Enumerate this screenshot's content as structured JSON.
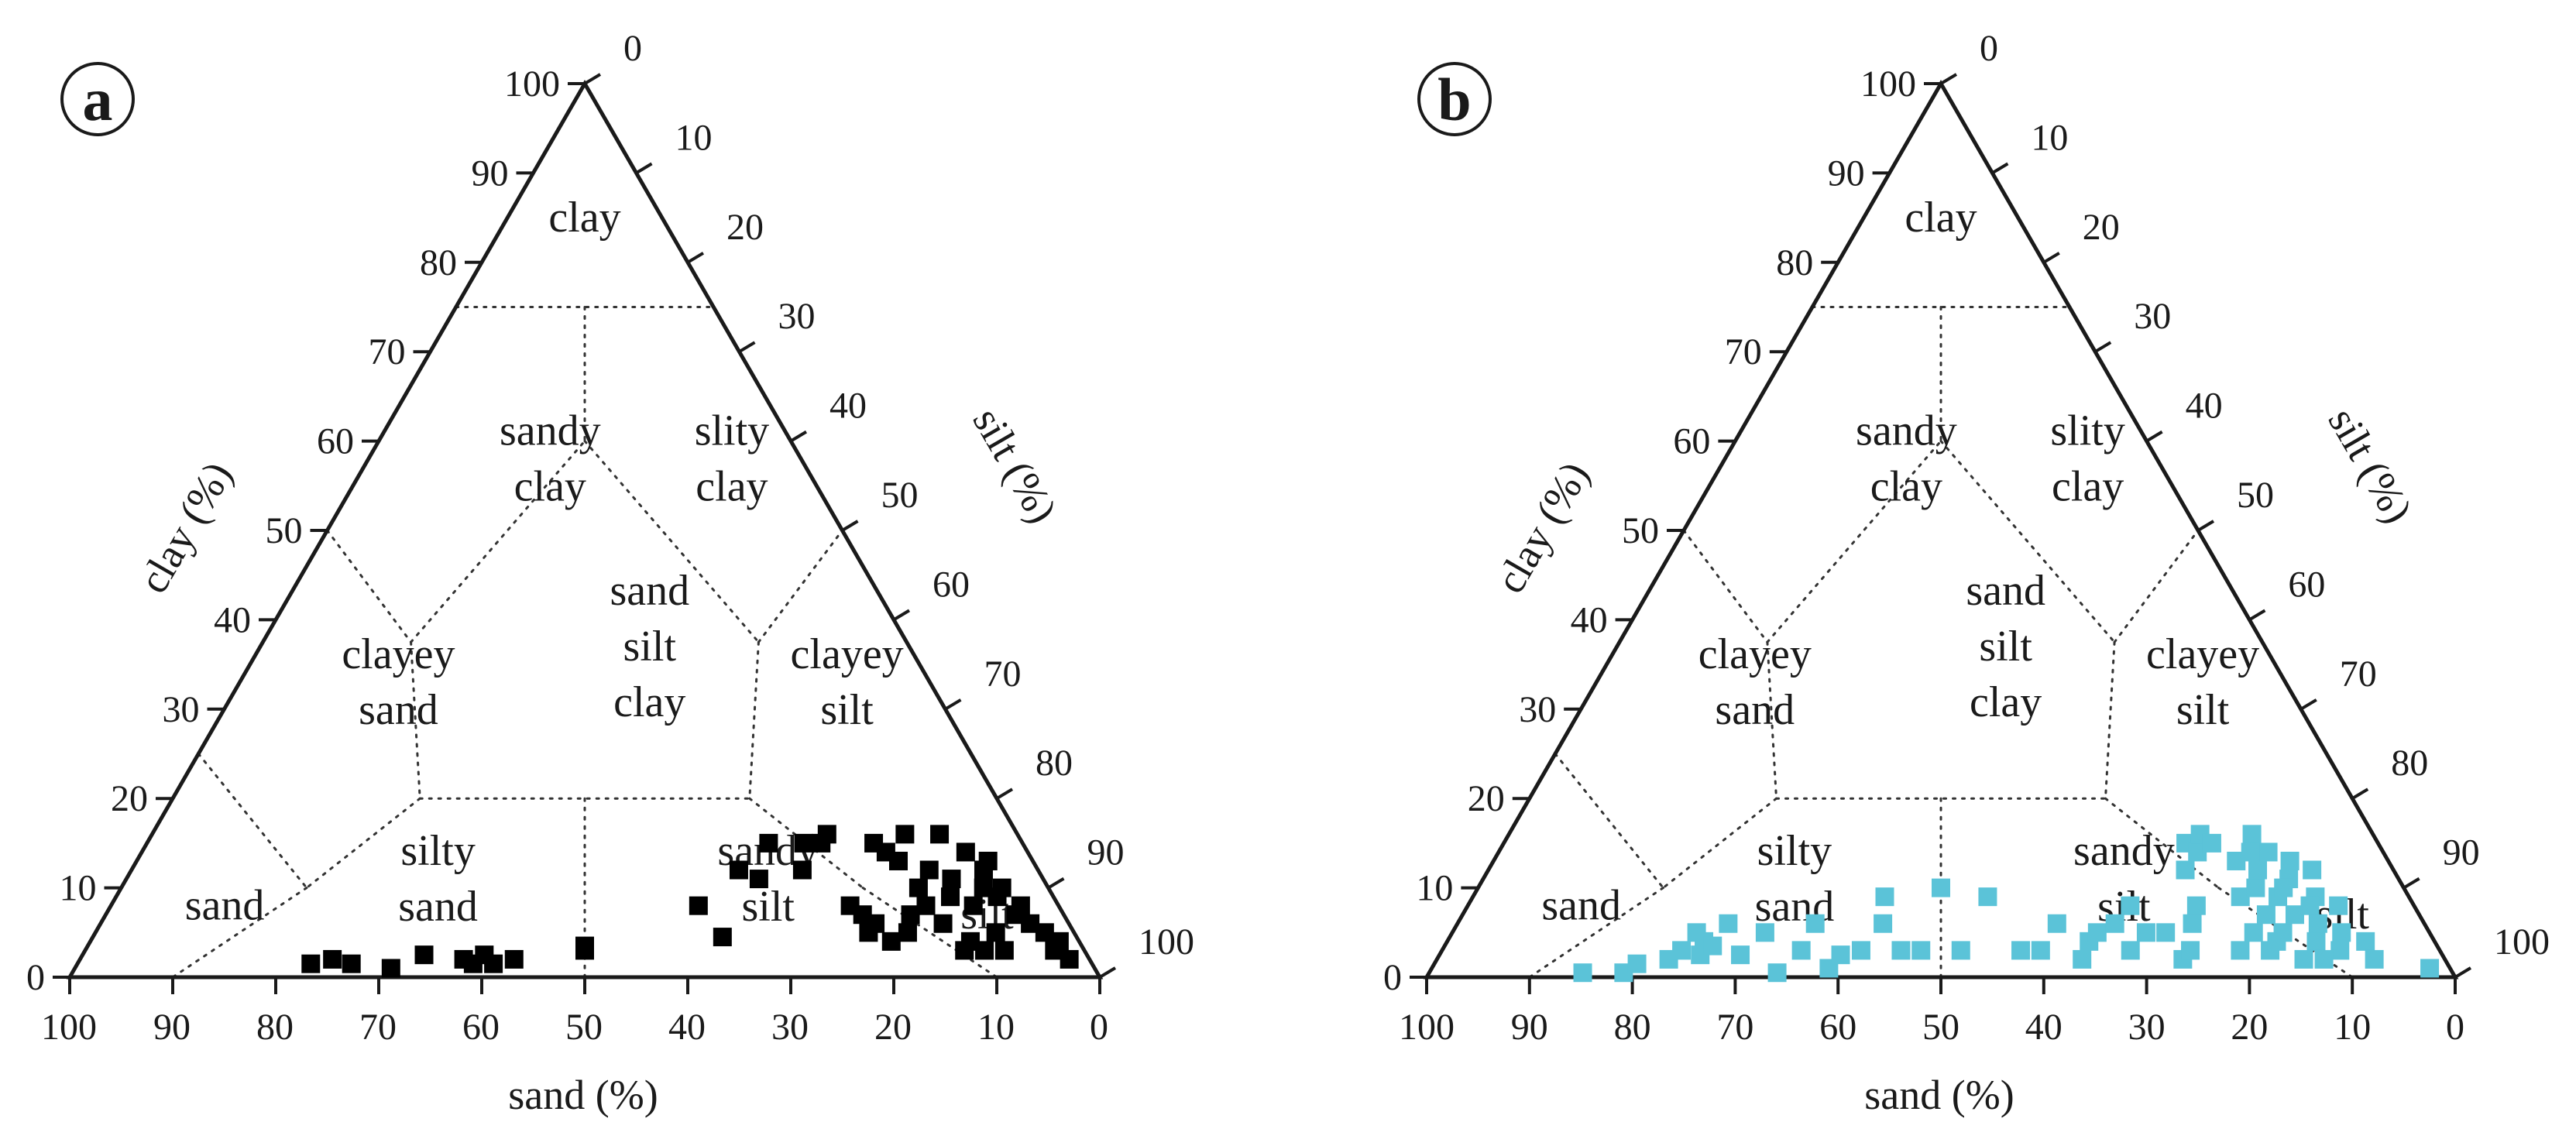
{
  "chart_data": [
    {
      "type": "scatter",
      "panel": "a",
      "title": "",
      "axis_labels": {
        "clay": "clay (%)",
        "silt": "silt (%)",
        "sand": "sand (%)"
      },
      "ticks": {
        "clay": [
          "0",
          "10",
          "20",
          "30",
          "40",
          "50",
          "60",
          "70",
          "80",
          "90",
          "100"
        ],
        "silt": [
          "0",
          "10",
          "20",
          "30",
          "40",
          "50",
          "60",
          "70",
          "80",
          "90",
          "100"
        ],
        "sand": [
          "100",
          "90",
          "80",
          "70",
          "60",
          "50",
          "40",
          "30",
          "20",
          "10",
          "0"
        ]
      },
      "regions": [
        {
          "label": [
            "clay"
          ],
          "clay": 85,
          "sand": 50
        },
        {
          "label": [
            "sandy",
            "clay"
          ],
          "clay": 58,
          "sand": 58
        },
        {
          "label": [
            "slity",
            "clay"
          ],
          "clay": 58,
          "sand": 16
        },
        {
          "label": [
            "sand",
            "silt",
            "clay"
          ],
          "clay": 37,
          "sand": 40
        },
        {
          "label": [
            "clayey",
            "sand"
          ],
          "clay": 33,
          "sand": 77
        },
        {
          "label": [
            "clayey",
            "silt"
          ],
          "clay": 33,
          "sand": 12
        },
        {
          "label": [
            "silty",
            "sand"
          ],
          "clay": 11,
          "sand": 66
        },
        {
          "label": [
            "sandy",
            "silt"
          ],
          "clay": 11,
          "sand": 30
        },
        {
          "label": [
            "silt"
          ],
          "clay": 7,
          "sand": 8
        },
        {
          "label": [
            "sand"
          ],
          "clay": 8,
          "sand": 88
        }
      ],
      "marker": {
        "shape": "square",
        "color": "#000000"
      },
      "points": [
        {
          "sand": 77,
          "clay": 1.5
        },
        {
          "sand": 75,
          "clay": 2
        },
        {
          "sand": 73,
          "clay": 1.5
        },
        {
          "sand": 69,
          "clay": 1
        },
        {
          "sand": 66,
          "clay": 2.5
        },
        {
          "sand": 62,
          "clay": 2
        },
        {
          "sand": 60,
          "clay": 2.5
        },
        {
          "sand": 59,
          "clay": 1.5
        },
        {
          "sand": 57,
          "clay": 2
        },
        {
          "sand": 61,
          "clay": 1.5
        },
        {
          "sand": 50,
          "clay": 3.5
        },
        {
          "sand": 50,
          "clay": 3
        },
        {
          "sand": 38,
          "clay": 8
        },
        {
          "sand": 36,
          "clay": 4.5
        },
        {
          "sand": 33,
          "clay": 12
        },
        {
          "sand": 31,
          "clay": 11
        },
        {
          "sand": 29,
          "clay": 15
        },
        {
          "sand": 26,
          "clay": 12
        },
        {
          "sand": 25,
          "clay": 15
        },
        {
          "sand": 23,
          "clay": 15
        },
        {
          "sand": 22,
          "clay": 16
        },
        {
          "sand": 21,
          "clay": 7
        },
        {
          "sand": 20,
          "clay": 6
        },
        {
          "sand": 21,
          "clay": 5
        },
        {
          "sand": 19,
          "clay": 4
        },
        {
          "sand": 22,
          "clay": 8
        },
        {
          "sand": 17,
          "clay": 15
        },
        {
          "sand": 16,
          "clay": 14
        },
        {
          "sand": 15,
          "clay": 13
        },
        {
          "sand": 14,
          "clay": 10
        },
        {
          "sand": 16,
          "clay": 7
        },
        {
          "sand": 17,
          "clay": 5
        },
        {
          "sand": 13,
          "clay": 16
        },
        {
          "sand": 12,
          "clay": 12
        },
        {
          "sand": 13,
          "clay": 6
        },
        {
          "sand": 11,
          "clay": 4
        },
        {
          "sand": 10,
          "clay": 3
        },
        {
          "sand": 9,
          "clay": 8
        },
        {
          "sand": 8,
          "clay": 5
        },
        {
          "sand": 10,
          "clay": 11
        },
        {
          "sand": 9,
          "clay": 16
        },
        {
          "sand": 7,
          "clay": 14
        },
        {
          "sand": 6,
          "clay": 12
        },
        {
          "sand": 6,
          "clay": 9
        },
        {
          "sand": 5,
          "clay": 10
        },
        {
          "sand": 5,
          "clay": 7
        },
        {
          "sand": 4,
          "clay": 6
        },
        {
          "sand": 4,
          "clay": 8
        },
        {
          "sand": 3,
          "clay": 5
        },
        {
          "sand": 3,
          "clay": 3
        },
        {
          "sand": 2,
          "clay": 4
        },
        {
          "sand": 2,
          "clay": 2
        },
        {
          "sand": 8,
          "clay": 3
        },
        {
          "sand": 11,
          "clay": 9
        },
        {
          "sand": 14,
          "clay": 8
        },
        {
          "sand": 7,
          "clay": 10
        },
        {
          "sand": 5,
          "clay": 13
        },
        {
          "sand": 12,
          "clay": 3
        }
      ]
    },
    {
      "type": "scatter",
      "panel": "b",
      "title": "",
      "axis_labels": {
        "clay": "clay (%)",
        "silt": "silt (%)",
        "sand": "sand (%)"
      },
      "ticks": {
        "clay": [
          "0",
          "10",
          "20",
          "30",
          "40",
          "50",
          "60",
          "70",
          "80",
          "90",
          "100"
        ],
        "silt": [
          "0",
          "10",
          "20",
          "30",
          "40",
          "50",
          "60",
          "70",
          "80",
          "90",
          "100"
        ],
        "sand": [
          "100",
          "90",
          "80",
          "70",
          "60",
          "50",
          "40",
          "30",
          "20",
          "10",
          "0"
        ]
      },
      "regions": [
        {
          "label": [
            "clay"
          ],
          "clay": 85,
          "sand": 50
        },
        {
          "label": [
            "sandy",
            "clay"
          ],
          "clay": 58,
          "sand": 58
        },
        {
          "label": [
            "slity",
            "clay"
          ],
          "clay": 58,
          "sand": 16
        },
        {
          "label": [
            "sand",
            "silt",
            "clay"
          ],
          "clay": 37,
          "sand": 40
        },
        {
          "label": [
            "clayey",
            "sand"
          ],
          "clay": 33,
          "sand": 77
        },
        {
          "label": [
            "clayey",
            "silt"
          ],
          "clay": 33,
          "sand": 12
        },
        {
          "label": [
            "silty",
            "sand"
          ],
          "clay": 11,
          "sand": 66
        },
        {
          "label": [
            "sandy",
            "silt"
          ],
          "clay": 11,
          "sand": 30
        },
        {
          "label": [
            "silt"
          ],
          "clay": 7,
          "sand": 8
        },
        {
          "label": [
            "sand"
          ],
          "clay": 8,
          "sand": 88
        }
      ],
      "marker": {
        "shape": "square",
        "color": "#5bc3d8"
      },
      "points": [
        {
          "sand": 85,
          "clay": 0.5
        },
        {
          "sand": 81,
          "clay": 0.5
        },
        {
          "sand": 80,
          "clay": 1.5
        },
        {
          "sand": 77,
          "clay": 2
        },
        {
          "sand": 76,
          "clay": 3
        },
        {
          "sand": 75,
          "clay": 5
        },
        {
          "sand": 74,
          "clay": 2.5
        },
        {
          "sand": 74,
          "clay": 4
        },
        {
          "sand": 73,
          "clay": 3.5
        },
        {
          "sand": 72,
          "clay": 6
        },
        {
          "sand": 70,
          "clay": 2.5
        },
        {
          "sand": 68,
          "clay": 5
        },
        {
          "sand": 66,
          "clay": 0.5
        },
        {
          "sand": 64,
          "clay": 3
        },
        {
          "sand": 63,
          "clay": 6
        },
        {
          "sand": 61,
          "clay": 1
        },
        {
          "sand": 60,
          "clay": 2.5
        },
        {
          "sand": 58,
          "clay": 3
        },
        {
          "sand": 56,
          "clay": 9
        },
        {
          "sand": 56,
          "clay": 6
        },
        {
          "sand": 54,
          "clay": 3
        },
        {
          "sand": 52,
          "clay": 3
        },
        {
          "sand": 50,
          "clay": 10
        },
        {
          "sand": 48,
          "clay": 3
        },
        {
          "sand": 45,
          "clay": 9
        },
        {
          "sand": 42,
          "clay": 3
        },
        {
          "sand": 40,
          "clay": 3
        },
        {
          "sand": 38,
          "clay": 6
        },
        {
          "sand": 36,
          "clay": 2
        },
        {
          "sand": 35,
          "clay": 4
        },
        {
          "sand": 34,
          "clay": 5
        },
        {
          "sand": 32,
          "clay": 6
        },
        {
          "sand": 31,
          "clay": 3
        },
        {
          "sand": 30,
          "clay": 8
        },
        {
          "sand": 29,
          "clay": 5
        },
        {
          "sand": 27,
          "clay": 5
        },
        {
          "sand": 26,
          "clay": 2
        },
        {
          "sand": 25,
          "clay": 3
        },
        {
          "sand": 24,
          "clay": 6
        },
        {
          "sand": 23,
          "clay": 12
        },
        {
          "sand": 23,
          "clay": 8
        },
        {
          "sand": 22,
          "clay": 15
        },
        {
          "sand": 21,
          "clay": 14
        },
        {
          "sand": 20,
          "clay": 16
        },
        {
          "sand": 19,
          "clay": 15
        },
        {
          "sand": 18,
          "clay": 9
        },
        {
          "sand": 18,
          "clay": 5
        },
        {
          "sand": 17,
          "clay": 13
        },
        {
          "sand": 17,
          "clay": 3
        },
        {
          "sand": 16,
          "clay": 10
        },
        {
          "sand": 16,
          "clay": 7
        },
        {
          "sand": 15,
          "clay": 12
        },
        {
          "sand": 15,
          "clay": 5
        },
        {
          "sand": 14,
          "clay": 16
        },
        {
          "sand": 14,
          "clay": 9
        },
        {
          "sand": 13,
          "clay": 14
        },
        {
          "sand": 13,
          "clay": 7
        },
        {
          "sand": 12,
          "clay": 11
        },
        {
          "sand": 12,
          "clay": 4
        },
        {
          "sand": 11,
          "clay": 13
        },
        {
          "sand": 11,
          "clay": 6
        },
        {
          "sand": 10,
          "clay": 9
        },
        {
          "sand": 10,
          "clay": 3
        },
        {
          "sand": 9,
          "clay": 12
        },
        {
          "sand": 9,
          "clay": 5
        },
        {
          "sand": 8,
          "clay": 8
        },
        {
          "sand": 7,
          "clay": 4
        },
        {
          "sand": 7,
          "clay": 2
        },
        {
          "sand": 14,
          "clay": 2
        },
        {
          "sand": 16,
          "clay": 4
        },
        {
          "sand": 13,
          "clay": 10
        },
        {
          "sand": 11,
          "clay": 8
        },
        {
          "sand": 2,
          "clay": 1
        },
        {
          "sand": 20,
          "clay": 3
        },
        {
          "sand": 12,
          "clay": 2
        },
        {
          "sand": 15,
          "clay": 14
        }
      ]
    }
  ]
}
